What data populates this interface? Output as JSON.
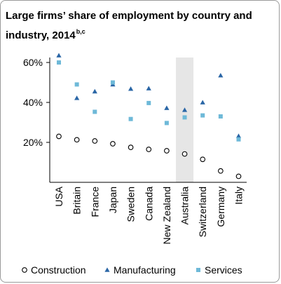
{
  "chart_data": {
    "type": "scatter",
    "title": "Large firms’ share of employment by country and industry, 2014",
    "title_superscript": "b,c",
    "categories": [
      "USA",
      "Britain",
      "France",
      "Japan",
      "Sweden",
      "Canada",
      "New Zealand",
      "Australia",
      "Switzerland",
      "Germany",
      "Italy"
    ],
    "highlighted_category": "Australia",
    "highlight_color": "#e6e6e6",
    "ylim": [
      0,
      0.66
    ],
    "yticks": [
      0.2,
      0.4,
      0.6
    ],
    "ytick_labels": [
      "20%",
      "40%",
      "60%"
    ],
    "grid": false,
    "legend_position": "bottom",
    "series": [
      {
        "name": "Construction",
        "marker": "circle-open",
        "color": "#000000",
        "values": [
          0.23,
          0.213,
          0.207,
          0.193,
          0.175,
          0.165,
          0.158,
          0.142,
          0.115,
          0.057,
          0.03
        ]
      },
      {
        "name": "Manufacturing",
        "marker": "triangle",
        "color": "#2a66a6",
        "values": [
          0.635,
          0.422,
          0.455,
          0.49,
          0.468,
          0.47,
          0.372,
          0.362,
          0.4,
          0.535,
          0.232
        ]
      },
      {
        "name": "Services",
        "marker": "square",
        "color": "#6eb9d8",
        "values": [
          0.6,
          0.49,
          0.353,
          0.5,
          0.317,
          0.397,
          0.297,
          0.325,
          0.335,
          0.33,
          0.215
        ]
      }
    ]
  }
}
